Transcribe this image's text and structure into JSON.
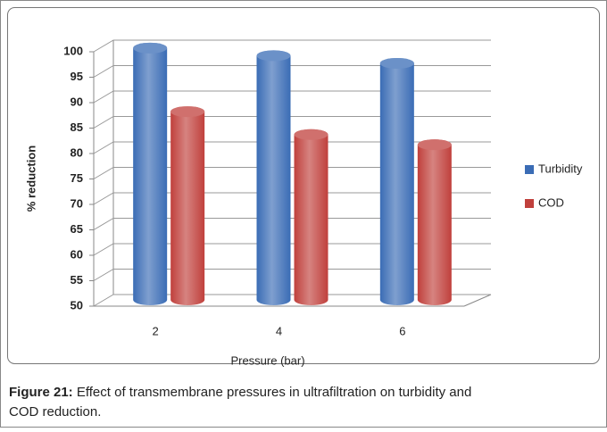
{
  "chart_data": {
    "type": "bar",
    "categories": [
      "2",
      "4",
      "6"
    ],
    "series": [
      {
        "name": "Turbidity",
        "color": "#3a6cb5",
        "values": [
          99.5,
          98,
          96.5
        ]
      },
      {
        "name": "COD",
        "color": "#c0403c",
        "values": [
          87,
          82.5,
          80.5
        ]
      }
    ],
    "ylim": [
      50,
      100
    ],
    "yticks": [
      50,
      55,
      60,
      65,
      70,
      75,
      80,
      85,
      90,
      95,
      100
    ],
    "xlabel": "Pressure (bar)",
    "ylabel": "% reduction",
    "grid": true,
    "legend": "right"
  },
  "caption": {
    "label": "Figure 21:",
    "text": "Effect of transmembrane pressures in ultrafiltration on turbidity and",
    "text2": "COD reduction."
  }
}
